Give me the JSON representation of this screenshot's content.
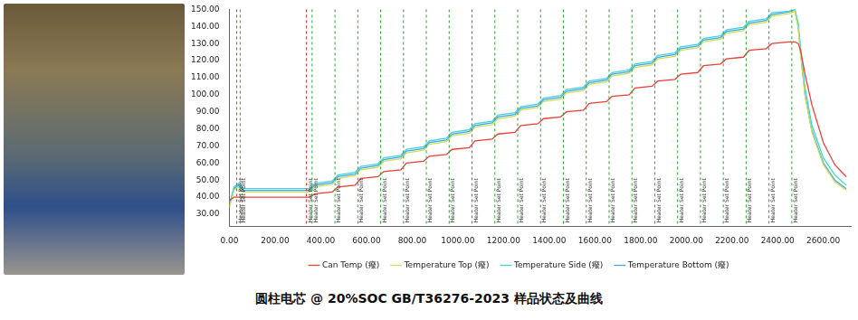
{
  "caption": "圆柱电芯 @ 20%SOC GB/T36276-2023 样品状态及曲线",
  "chart_data": {
    "type": "line",
    "x": [
      0,
      20,
      40,
      60,
      200,
      350,
      375,
      450,
      475,
      550,
      575,
      650,
      675,
      750,
      775,
      850,
      875,
      950,
      975,
      1050,
      1075,
      1150,
      1175,
      1250,
      1275,
      1350,
      1375,
      1450,
      1475,
      1550,
      1575,
      1650,
      1675,
      1750,
      1775,
      1850,
      1875,
      1950,
      1975,
      2050,
      2075,
      2150,
      2175,
      2250,
      2275,
      2350,
      2375,
      2450,
      2475,
      2490,
      2500,
      2520,
      2550,
      2600,
      2650,
      2700
    ],
    "series": [
      {
        "name": "Can Temp (癈)",
        "color": "#e8413a",
        "values": [
          38,
          40,
          40,
          40,
          40,
          40,
          42,
          43,
          46,
          47,
          51,
          52,
          55,
          56,
          60,
          61,
          64,
          65,
          68,
          69,
          73,
          74,
          77,
          78,
          82,
          83,
          86,
          87,
          90,
          91,
          95,
          96,
          99,
          100,
          104,
          105,
          108,
          109,
          112,
          113,
          117,
          118,
          121,
          122,
          126,
          127,
          130,
          131,
          131,
          130,
          126,
          112,
          94,
          72,
          59,
          52
        ]
      },
      {
        "name": "Temperature Top (癈)",
        "color": "#c8e05a",
        "values": [
          34,
          44,
          46,
          43,
          43,
          43,
          46,
          47.5,
          51,
          52.5,
          56,
          57.5,
          61,
          62.5,
          66,
          67.5,
          71,
          72.5,
          76,
          77.5,
          81,
          82.5,
          86,
          87.5,
          91,
          92.5,
          96,
          97.5,
          101,
          102.5,
          106,
          107.5,
          111,
          112.5,
          116,
          117.5,
          121,
          122.5,
          126,
          127.5,
          131,
          132.5,
          136,
          137.5,
          141,
          142.5,
          146,
          147.5,
          149,
          139,
          124,
          99,
          78,
          59,
          49,
          44
        ]
      },
      {
        "name": "Temperature Side (癈)",
        "color": "#3ed4e6",
        "values": [
          36,
          46,
          48,
          45,
          45,
          45,
          48,
          49.5,
          53,
          54.5,
          58,
          59.5,
          63,
          64.5,
          68,
          69.5,
          73,
          74.5,
          78,
          79.5,
          83,
          84.5,
          88,
          89.5,
          93,
          94.5,
          98,
          99.5,
          103,
          104.5,
          108,
          109.5,
          113,
          114.5,
          118,
          119.5,
          123,
          124.5,
          128,
          129.5,
          133,
          134.5,
          138,
          139.5,
          143,
          144.5,
          148,
          149,
          150,
          142,
          128,
          104,
          82,
          63,
          53,
          47
        ]
      },
      {
        "name": "Temperature Bottom (癈)",
        "color": "#4aa0e0",
        "values": [
          35,
          45,
          47,
          44,
          44,
          44,
          47,
          48.5,
          52,
          53.5,
          57,
          58.5,
          62,
          63.5,
          67,
          68.5,
          72,
          73.5,
          77,
          78.5,
          82,
          83.5,
          87,
          88.5,
          92,
          93.5,
          97,
          98.5,
          102,
          103.5,
          107,
          108.5,
          112,
          113.5,
          117,
          118.5,
          122,
          123.5,
          127,
          128.5,
          132,
          133.5,
          137,
          138.5,
          142,
          143.5,
          147,
          148.5,
          150,
          140,
          125,
          100,
          79,
          60,
          50,
          45
        ]
      }
    ],
    "markers": [
      {
        "x": 30,
        "label": "Heater Set Point",
        "color": "#e03030"
      },
      {
        "x": 45,
        "label": "Heater Set Point",
        "color": "#2ca02c"
      },
      {
        "x": 335,
        "label": "Heater Set Point",
        "color": "#e03030"
      },
      {
        "x": 360,
        "label": "Heater Set Point",
        "color": "#2ca02c"
      },
      {
        "x": 460,
        "label": "Heater Set Point",
        "color": "#2ca02c"
      },
      {
        "x": 560,
        "label": "Heater Set Point",
        "color": "#2ca02c"
      },
      {
        "x": 660,
        "label": "Heater Set Point",
        "color": "#2ca02c"
      },
      {
        "x": 760,
        "label": "Heater Set Point",
        "color": "#2ca02c"
      },
      {
        "x": 860,
        "label": "Heater Set Point",
        "color": "#2ca02c"
      },
      {
        "x": 960,
        "label": "Heater Set Point",
        "color": "#2ca02c"
      },
      {
        "x": 1060,
        "label": "Heater Set Point",
        "color": "#2ca02c"
      },
      {
        "x": 1160,
        "label": "Heater Set Point",
        "color": "#2ca02c"
      },
      {
        "x": 1260,
        "label": "Heater Set Point",
        "color": "#2ca02c"
      },
      {
        "x": 1360,
        "label": "Heater Set Point",
        "color": "#2ca02c"
      },
      {
        "x": 1460,
        "label": "Heater Set Point",
        "color": "#2ca02c"
      },
      {
        "x": 1560,
        "label": "Heater Set Point",
        "color": "#2ca02c"
      },
      {
        "x": 1660,
        "label": "Heater Set Point",
        "color": "#2ca02c"
      },
      {
        "x": 1760,
        "label": "Heater Set Point",
        "color": "#2ca02c"
      },
      {
        "x": 1860,
        "label": "Heater Set Point",
        "color": "#2ca02c"
      },
      {
        "x": 1960,
        "label": "Heater Set Point",
        "color": "#2ca02c"
      },
      {
        "x": 2060,
        "label": "Heater Set Point",
        "color": "#2ca02c"
      },
      {
        "x": 2160,
        "label": "Heater Set Point",
        "color": "#2ca02c"
      },
      {
        "x": 2260,
        "label": "Heater Set Point",
        "color": "#2ca02c"
      },
      {
        "x": 2360,
        "label": "Heater Set Point",
        "color": "#2ca02c"
      },
      {
        "x": 2460,
        "label": "Heater Set Point",
        "color": "#2ca02c"
      }
    ],
    "xlim": [
      0,
      2720
    ],
    "xticks": [
      {
        "value": 0,
        "label": "0.00"
      },
      {
        "value": 200,
        "label": "200.00"
      },
      {
        "value": 400,
        "label": "400.00"
      },
      {
        "value": 600,
        "label": "600.00"
      },
      {
        "value": 800,
        "label": "800.00"
      },
      {
        "value": 1000,
        "label": "1000.00"
      },
      {
        "value": 1200,
        "label": "1200.00"
      },
      {
        "value": 1400,
        "label": "1400.00"
      },
      {
        "value": 1600,
        "label": "1600.00"
      },
      {
        "value": 1800,
        "label": "1800.00"
      },
      {
        "value": 2000,
        "label": "2000.00"
      },
      {
        "value": 2200,
        "label": "2200.00"
      },
      {
        "value": 2400,
        "label": "2400.00"
      },
      {
        "value": 2600,
        "label": "2600.00"
      }
    ],
    "ylim": [
      23,
      150
    ],
    "yticks": [
      {
        "value": 30,
        "label": "30.00"
      },
      {
        "value": 40,
        "label": "40.00"
      },
      {
        "value": 50,
        "label": "50.00"
      },
      {
        "value": 60,
        "label": "60.00"
      },
      {
        "value": 70,
        "label": "70.00"
      },
      {
        "value": 80,
        "label": "80.00"
      },
      {
        "value": 90,
        "label": "90.00"
      },
      {
        "value": 100,
        "label": "100.00"
      },
      {
        "value": 110,
        "label": "110.00"
      },
      {
        "value": 120,
        "label": "120.00"
      },
      {
        "value": 130,
        "label": "130.00"
      },
      {
        "value": 140,
        "label": "140.00"
      },
      {
        "value": 150,
        "label": "150.00"
      }
    ],
    "grid": false,
    "legend": "bottom"
  }
}
